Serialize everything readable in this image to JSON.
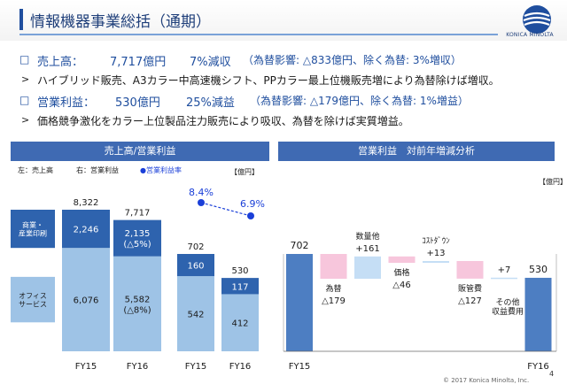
{
  "page": {
    "title": "情報機器事業総括（通期）",
    "brand": "KONICA MINOLTA",
    "footer": "© 2017 Konica Minolta, Inc.",
    "page_number": "4"
  },
  "summary": {
    "sales": {
      "label": "売上高：",
      "value": "7,717億円",
      "change": "7%減収",
      "note": "（為替影響: △833億円、除く為替: 3%増収）"
    },
    "sales_comment": "ハイブリッド販売、A3カラー中高速機シフト、PPカラー最上位機販売増により為替除けば増収。",
    "op": {
      "label": "営業利益：",
      "value": "530億円",
      "change": "25%減益",
      "note": "（為替影響: △179億円、除く為替: 1%増益）"
    },
    "op_comment": "価格競争激化をカラー上位製品注力販売により吸収、為替を除けば実質増益。"
  },
  "left_panel": {
    "header": "売上高/営業利益",
    "legend_left": "左：売上高",
    "legend_right": "右：営業利益",
    "legend_rate": "●営業利益率",
    "unit": "【億円】",
    "label_commercial": "商業・\n産業印刷",
    "label_office": "オフィス\nサービス"
  },
  "right_panel": {
    "header": "営業利益　対前年増減分析",
    "unit": "【億円】"
  },
  "colors": {
    "dark_blue": "#2e63ae",
    "light_blue": "#9ec3e6",
    "waterfall_blue": "#4d7ec2",
    "pink": "#f7c6dc",
    "pale_blue": "#c5def5",
    "rate_dot": "#1a3fd8"
  },
  "chart_data": [
    {
      "type": "bar",
      "title": "売上高",
      "categories": [
        "FY15",
        "FY16"
      ],
      "stacked": true,
      "series": [
        {
          "name": "オフィスサービス",
          "values": [
            6076,
            5582
          ],
          "labels": [
            "6,076",
            "5,582\n(△8%)"
          ]
        },
        {
          "name": "商業・産業印刷",
          "values": [
            2246,
            2135
          ],
          "labels": [
            "2,246",
            "2,135\n(△5%)"
          ]
        }
      ],
      "totals": [
        "8,322",
        "7,717"
      ]
    },
    {
      "type": "bar",
      "title": "営業利益",
      "categories": [
        "FY15",
        "FY16"
      ],
      "stacked": true,
      "series": [
        {
          "name": "オフィスサービス",
          "values": [
            542,
            412
          ],
          "labels": [
            "542",
            "412"
          ]
        },
        {
          "name": "商業・産業印刷",
          "values": [
            160,
            117
          ],
          "labels": [
            "160",
            "117"
          ]
        }
      ],
      "totals": [
        "702",
        "530"
      ]
    },
    {
      "type": "line",
      "title": "営業利益率",
      "categories": [
        "FY15",
        "FY16"
      ],
      "series": [
        {
          "name": "営業利益率",
          "values": [
            8.4,
            6.9
          ],
          "labels": [
            "8.4%",
            "6.9%"
          ]
        }
      ]
    },
    {
      "type": "bar",
      "title": "営業利益　対前年増減分析",
      "subtype": "waterfall",
      "steps": [
        {
          "label": "FY15",
          "kind": "total",
          "value": 702,
          "value_label": "702"
        },
        {
          "label": "為替",
          "kind": "decrease",
          "value": -179,
          "value_label": "△179"
        },
        {
          "label": "数量他",
          "kind": "increase",
          "value": 161,
          "value_label": "+161"
        },
        {
          "label": "価格",
          "kind": "decrease",
          "value": -46,
          "value_label": "△46"
        },
        {
          "label": "ｺｽﾄﾀﾞｳﾝ",
          "kind": "increase",
          "value": 13,
          "value_label": "+13"
        },
        {
          "label": "販管費",
          "kind": "decrease",
          "value": -127,
          "value_label": "△127"
        },
        {
          "label": "その他\n収益費用",
          "kind": "increase",
          "value": 7,
          "value_label": "+7"
        },
        {
          "label": "FY16",
          "kind": "total",
          "value": 530,
          "value_label": "530"
        }
      ]
    }
  ]
}
